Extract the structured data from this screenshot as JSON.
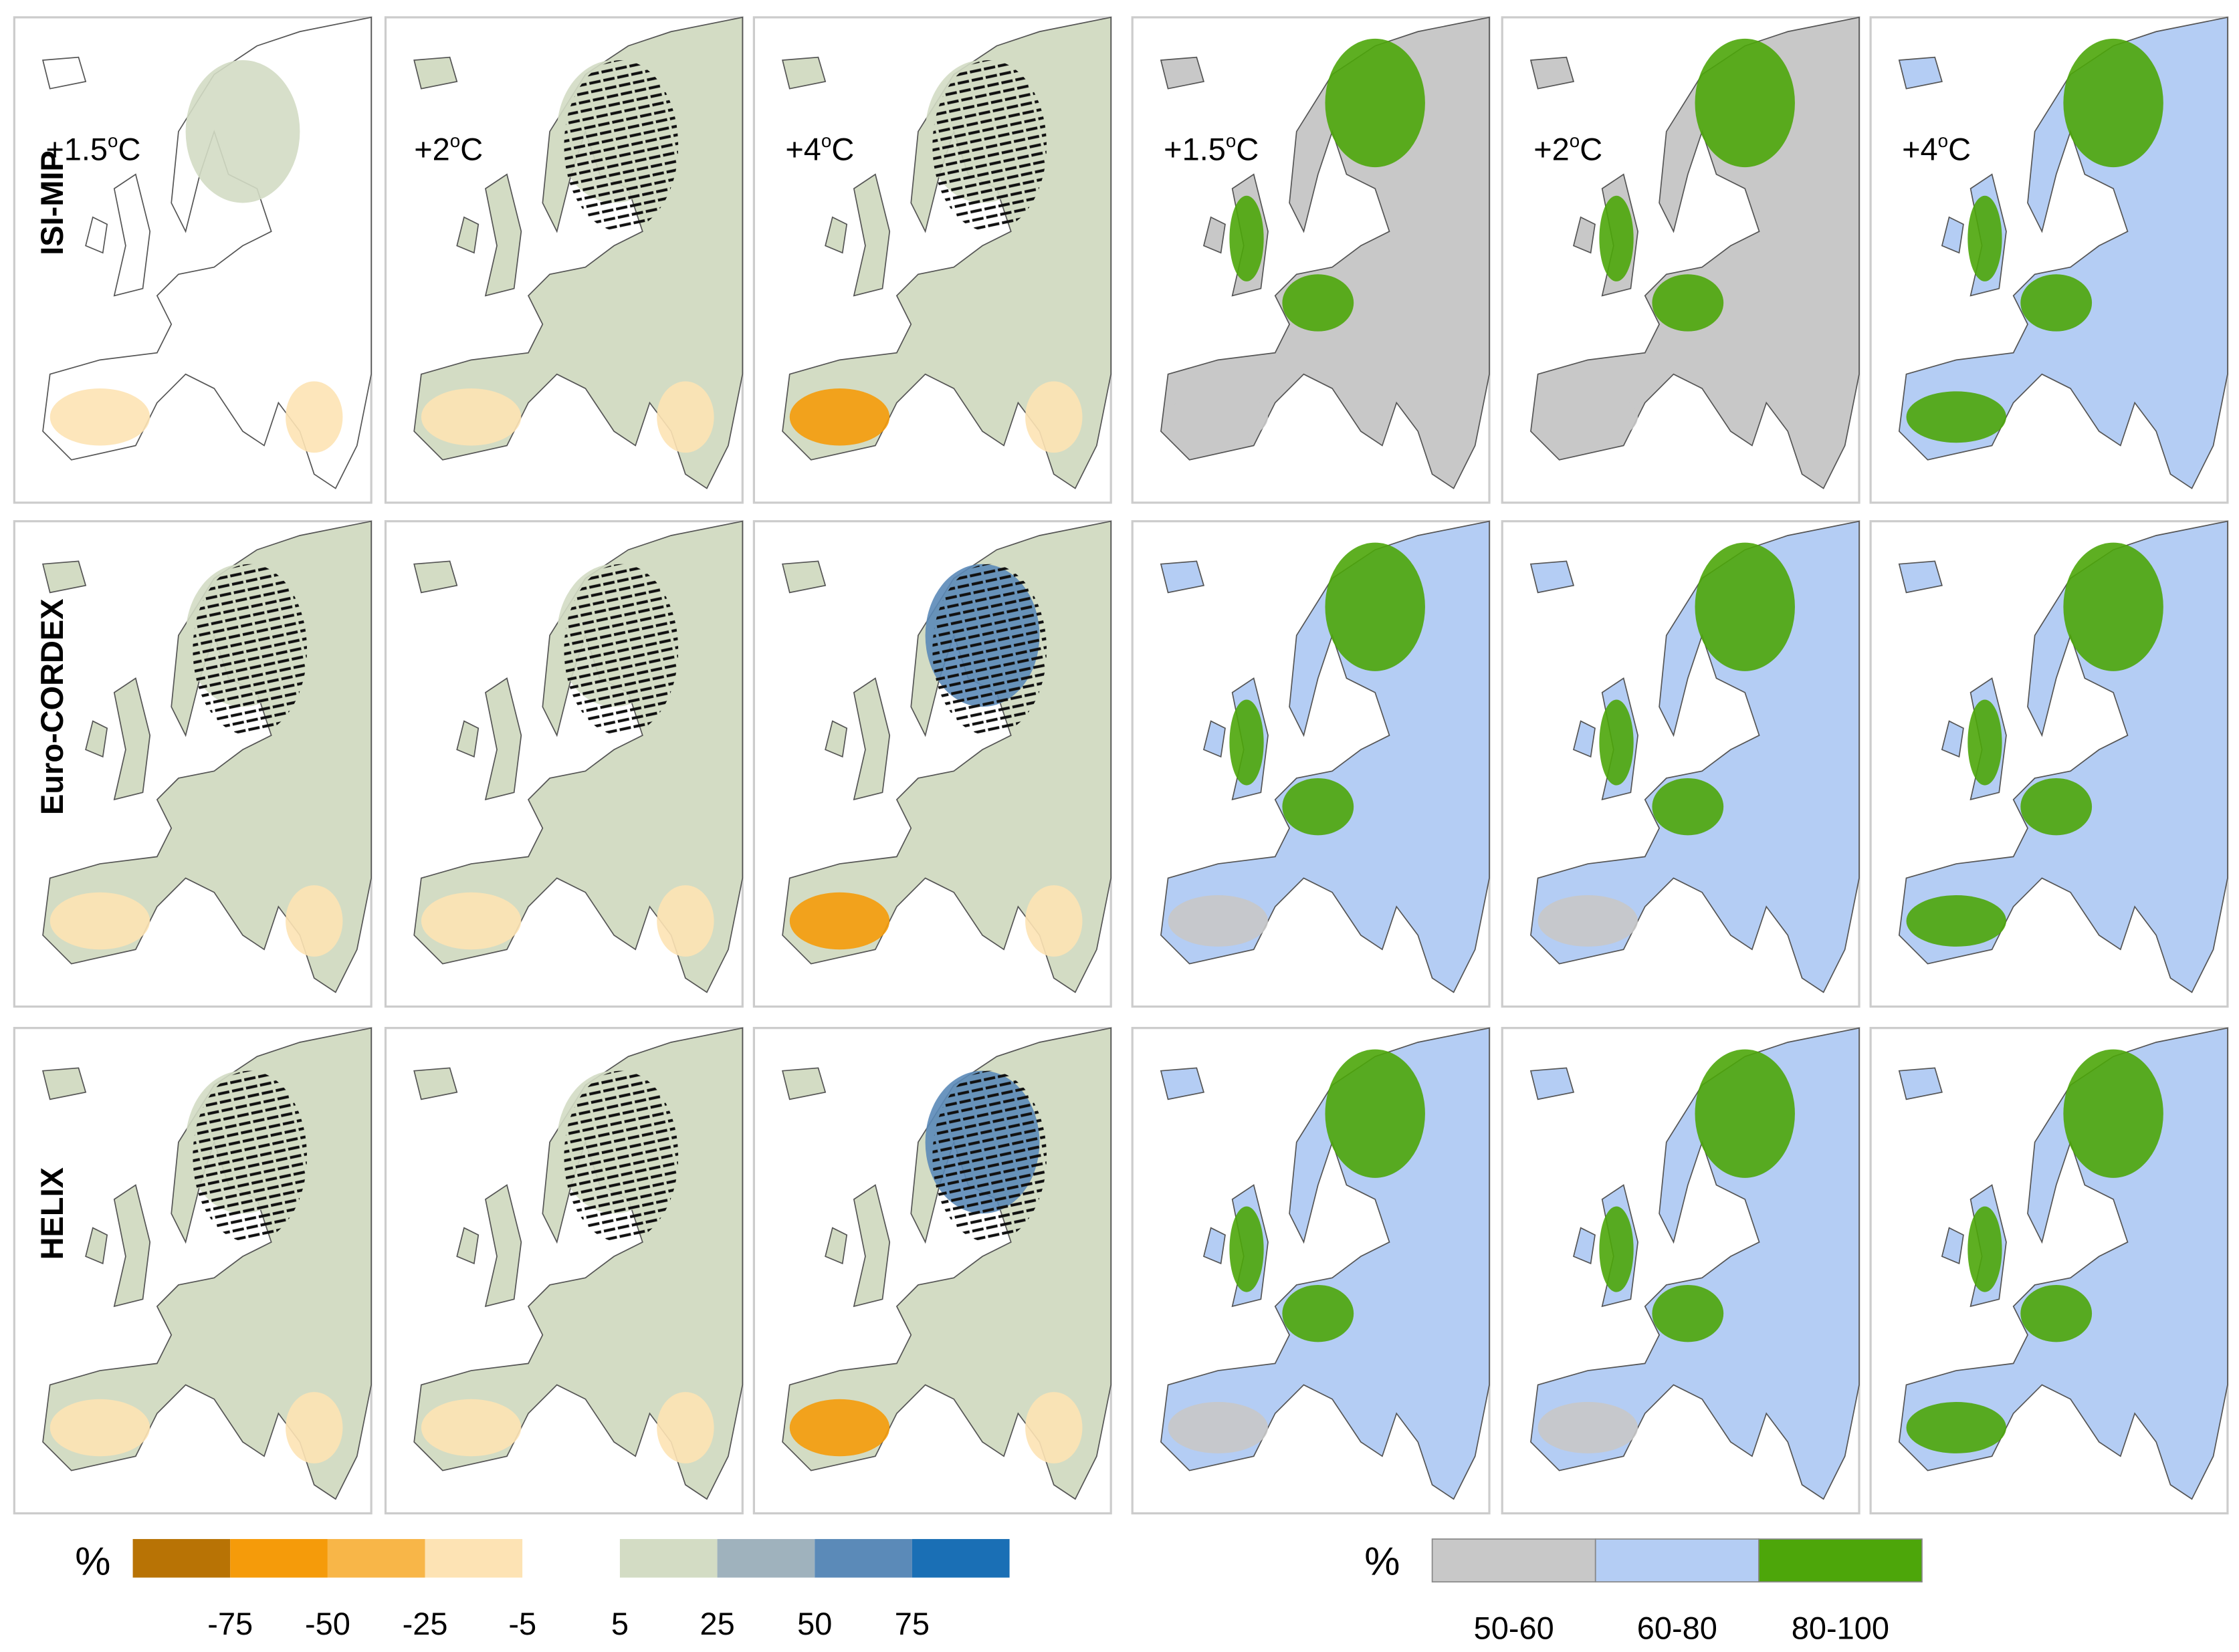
{
  "rows": [
    "ISI-MIP",
    "Euro-CORDEX",
    "HELIX"
  ],
  "warming_levels": [
    {
      "base": "+1.5",
      "sup": "o",
      "unit": "C"
    },
    {
      "base": "+2",
      "sup": "o",
      "unit": "C"
    },
    {
      "base": "+4",
      "sup": "o",
      "unit": "C"
    }
  ],
  "legend_left": {
    "unit": "%",
    "colors": [
      "#b87305",
      "#f59b0a",
      "#f8b648",
      "#fde3b4",
      "#ffffff",
      "#d3dcc4",
      "#9fb2bd",
      "#5b8ab8",
      "#1a6fb5"
    ],
    "labels": [
      "-75",
      "-50",
      "-25",
      "-5",
      "5",
      "25",
      "50",
      "75"
    ]
  },
  "legend_right": {
    "unit": "%",
    "classes": [
      {
        "label": "50-60",
        "color": "#c8c8c8"
      },
      {
        "label": "60-80",
        "color": "#b4cdf4"
      },
      {
        "label": "80-100",
        "color": "#4da60a"
      }
    ]
  }
}
